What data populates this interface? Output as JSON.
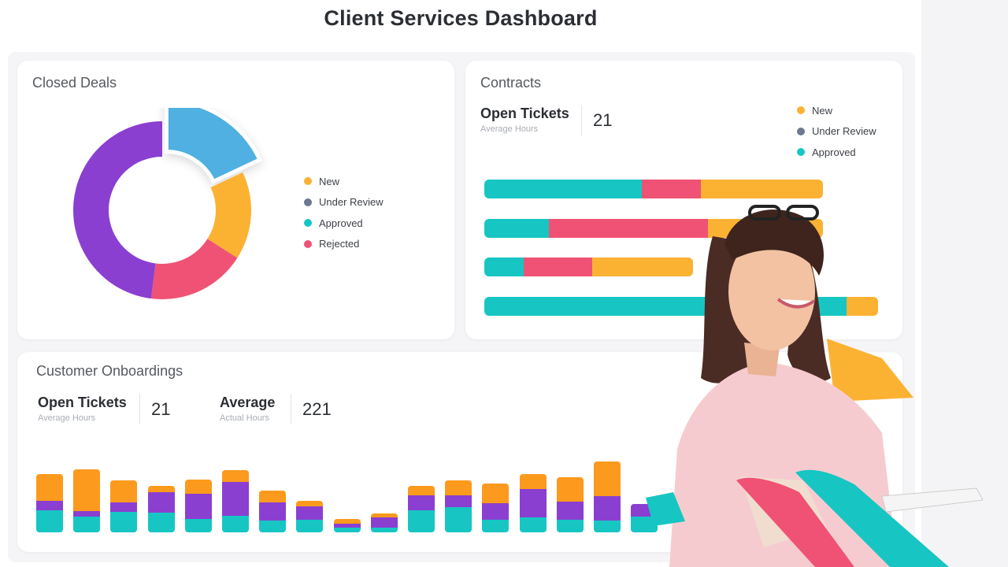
{
  "header": {
    "title": "Client Services Dashboard"
  },
  "colors": {
    "new": "#fbb233",
    "under_review": "#6b7a8f",
    "approved": "#17c6c3",
    "rejected": "#ef5274",
    "purple": "#8a3fd1",
    "orange": "#fb9a1d",
    "blue_slice": "#4fb0e1"
  },
  "closed_deals": {
    "title": "Closed Deals",
    "legend": [
      {
        "label": "New",
        "color": "#fbb233"
      },
      {
        "label": "Under Review",
        "color": "#6b7a8f"
      },
      {
        "label": "Approved",
        "color": "#17c6c3"
      },
      {
        "label": "Rejected",
        "color": "#ef5274"
      }
    ],
    "chart_data": {
      "type": "pie",
      "style": "donut",
      "slices": [
        {
          "color": "#4fb0e1",
          "value": 18,
          "exploded": true
        },
        {
          "color": "#fbb233",
          "value": 16
        },
        {
          "color": "#ef5274",
          "value": 18
        },
        {
          "color": "#8a3fd1",
          "value": 48
        }
      ]
    }
  },
  "contracts": {
    "title": "Contracts",
    "stat": {
      "label": "Open Tickets",
      "sub": "Average Hours",
      "value": "21"
    },
    "legend": [
      {
        "label": "New",
        "color": "#fbb233"
      },
      {
        "label": "Under Review",
        "color": "#6b7a8f"
      },
      {
        "label": "Approved",
        "color": "#17c6c3"
      }
    ],
    "chart_data": {
      "type": "bar",
      "orientation": "horizontal",
      "stacked": true,
      "segment_colors": [
        "#17c6c3",
        "#ef5274",
        "#fbb233"
      ],
      "rows": [
        [
          200,
          75,
          155
        ],
        [
          82,
          202,
          146
        ],
        [
          50,
          87,
          128
        ],
        [
          460,
          0,
          40
        ]
      ]
    }
  },
  "onboardings": {
    "title": "Customer Onboardings",
    "stats": [
      {
        "label": "Open Tickets",
        "sub": "Average Hours",
        "value": "21"
      },
      {
        "label": "Average",
        "sub": "Actual Hours",
        "value": "221"
      }
    ],
    "chart_data": {
      "type": "bar",
      "stacked": true,
      "segment_colors": [
        "#17c6c3",
        "#8a3fd1",
        "#fb9a1d"
      ],
      "series": [
        {
          "values": [
            28,
            20,
            26,
            25,
            17,
            21,
            15,
            16,
            6,
            6,
            28,
            32,
            16,
            19,
            16,
            15,
            20
          ]
        },
        {
          "values": [
            12,
            7,
            12,
            26,
            32,
            43,
            23,
            17,
            5,
            13,
            19,
            15,
            21,
            36,
            23,
            31,
            16
          ]
        },
        {
          "values": [
            34,
            53,
            28,
            8,
            18,
            15,
            15,
            7,
            6,
            5,
            12,
            19,
            25,
            19,
            31,
            44,
            0
          ]
        }
      ]
    }
  }
}
